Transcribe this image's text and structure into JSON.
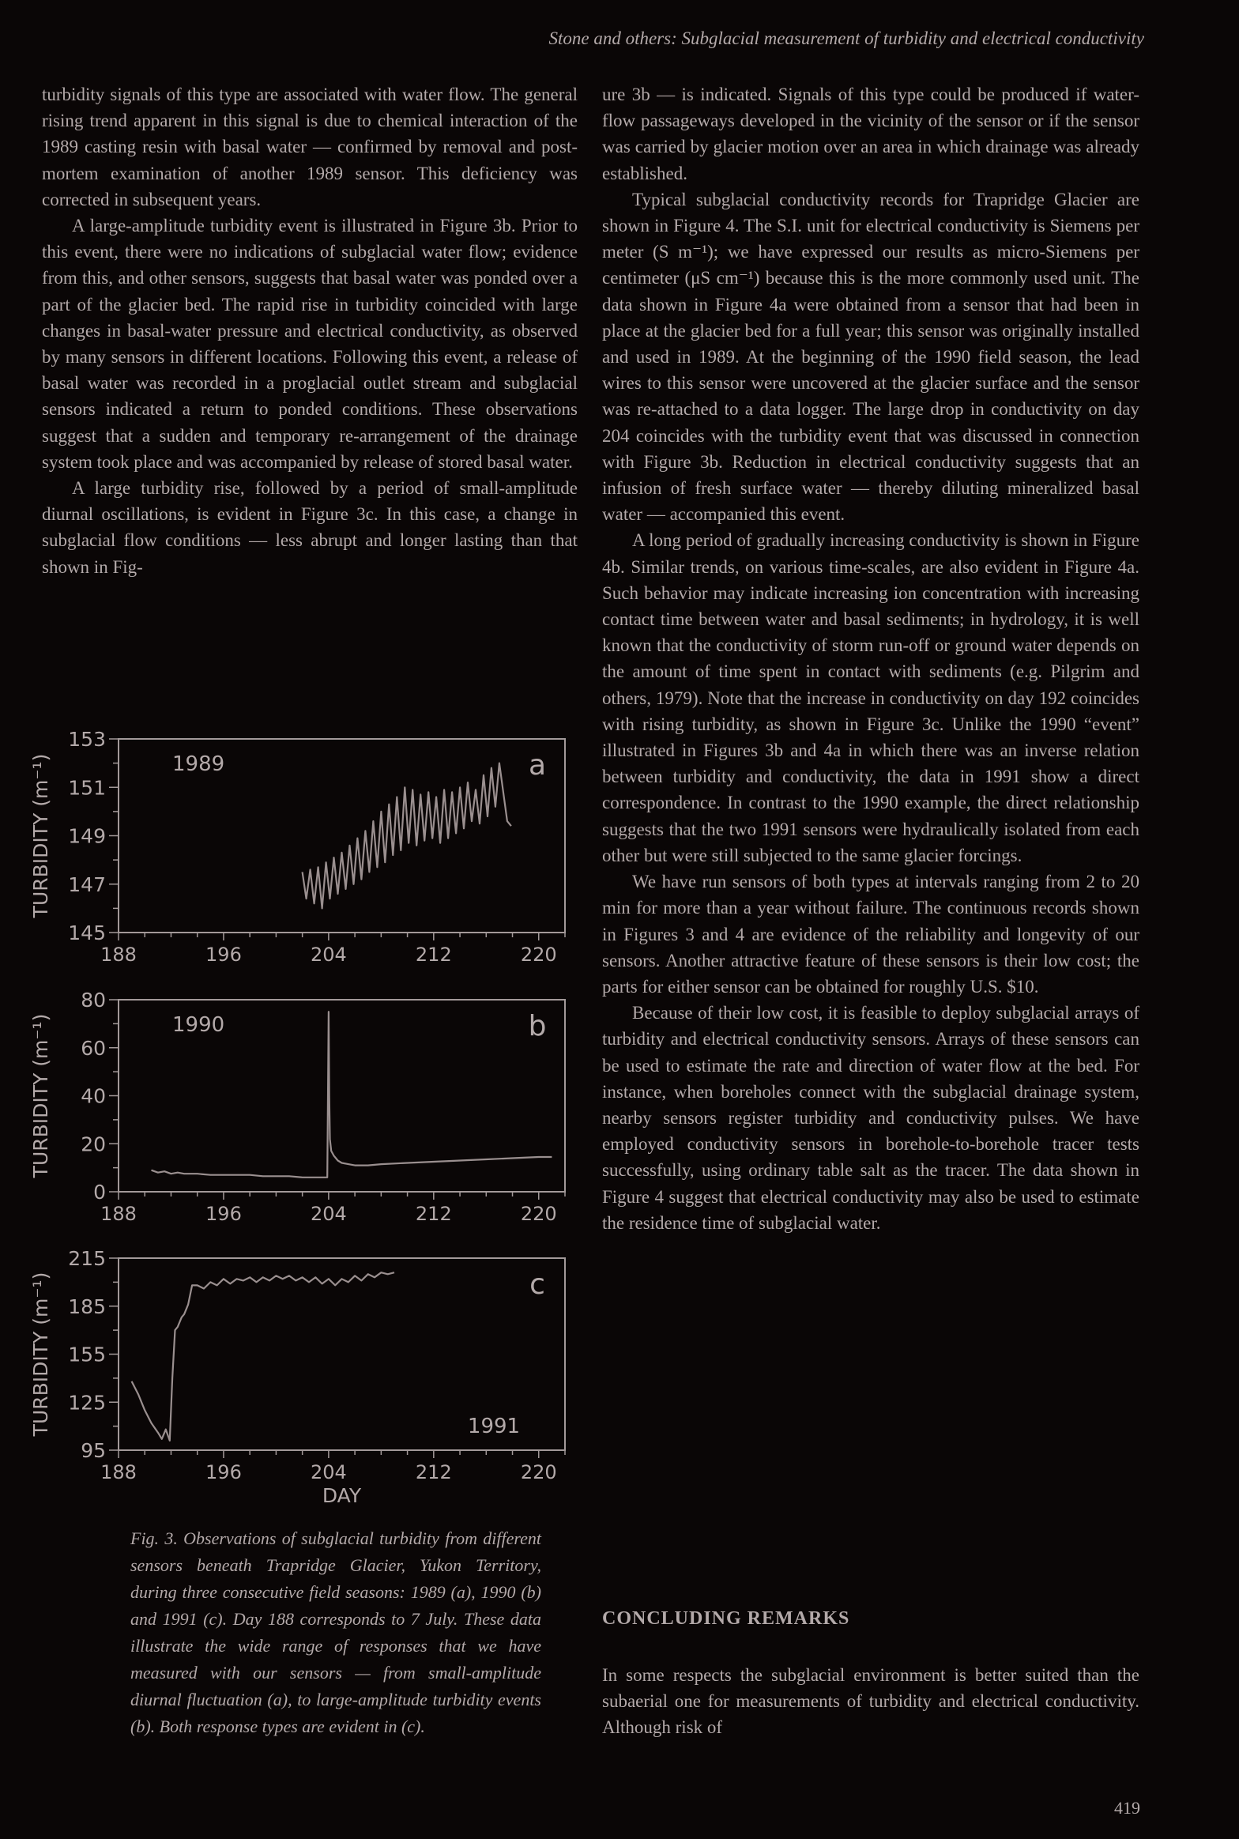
{
  "header": "Stone and others: Subglacial measurement of turbidity and electrical conductivity",
  "left_column": [
    "turbidity signals of this type are associated with water flow. The general rising trend apparent in this signal is due to chemical interaction of the 1989 casting resin with basal water — confirmed by removal and post-mortem examination of another 1989 sensor. This deficiency was corrected in subsequent years.",
    "A large-amplitude turbidity event is illustrated in Figure 3b. Prior to this event, there were no indications of subglacial water flow; evidence from this, and other sensors, suggests that basal water was ponded over a part of the glacier bed. The rapid rise in turbidity coincided with large changes in basal-water pressure and electrical conductivity, as observed by many sensors in different locations. Following this event, a release of basal water was recorded in a proglacial outlet stream and subglacial sensors indicated a return to ponded conditions. These observations suggest that a sudden and temporary re-arrangement of the drainage system took place and was accompanied by release of stored basal water.",
    "A large turbidity rise, followed by a period of small-amplitude diurnal oscillations, is evident in Figure 3c. In this case, a change in subglacial flow conditions — less abrupt and longer lasting than that shown in Fig-"
  ],
  "right_column": [
    "ure 3b — is indicated. Signals of this type could be produced if water-flow passageways developed in the vicinity of the sensor or if the sensor was carried by glacier motion over an area in which drainage was already established.",
    "Typical subglacial conductivity records for Trapridge Glacier are shown in Figure 4. The S.I. unit for electrical conductivity is Siemens per meter (S m⁻¹); we have expressed our results as micro-Siemens per centimeter (μS cm⁻¹) because this is the more commonly used unit. The data shown in Figure 4a were obtained from a sensor that had been in place at the glacier bed for a full year; this sensor was originally installed and used in 1989. At the beginning of the 1990 field season, the lead wires to this sensor were uncovered at the glacier surface and the sensor was re-attached to a data logger. The large drop in conductivity on day 204 coincides with the turbidity event that was discussed in connection with Figure 3b. Reduction in electrical conductivity suggests that an infusion of fresh surface water — thereby diluting mineralized basal water — accompanied this event.",
    "A long period of gradually increasing conductivity is shown in Figure 4b. Similar trends, on various time-scales, are also evident in Figure 4a. Such behavior may indicate increasing ion concentration with increasing contact time between water and basal sediments; in hydrology, it is well known that the conductivity of storm run-off or ground water depends on the amount of time spent in contact with sediments (e.g. Pilgrim and others, 1979). Note that the increase in conductivity on day 192 coincides with rising turbidity, as shown in Figure 3c. Unlike the 1990 “event” illustrated in Figures 3b and 4a in which there was an inverse relation between turbidity and conductivity, the data in 1991 show a direct correspondence. In contrast to the 1990 example, the direct relationship suggests that the two 1991 sensors were hydraulically isolated from each other but were still subjected to the same glacier forcings.",
    "We have run sensors of both types at intervals ranging from 2 to 20 min for more than a year without failure. The continuous records shown in Figures 3 and 4 are evidence of the reliability and longevity of our sensors. Another attractive feature of these sensors is their low cost; the parts for either sensor can be obtained for roughly U.S. $10.",
    "Because of their low cost, it is feasible to deploy subglacial arrays of turbidity and electrical conductivity sensors. Arrays of these sensors can be used to estimate the rate and direction of water flow at the bed. For instance, when boreholes connect with the subglacial drainage system, nearby sensors register turbidity and conductivity pulses. We have employed conductivity sensors in borehole-to-borehole tracer tests successfully, using ordinary table salt as the tracer. The data shown in Figure 4 suggest that electrical conductivity may also be used to estimate the residence time of subglacial water."
  ],
  "section_heading": "CONCLUDING REMARKS",
  "concluding_text": "In some respects the subglacial environment is better suited than the subaerial one for measurements of turbidity and electrical conductivity. Although risk of",
  "caption": "Fig. 3. Observations of subglacial turbidity from different sensors beneath Trapridge Glacier, Yukon Territory, during three consecutive field seasons: 1989 (a), 1990 (b) and 1991 (c). Day 188 corresponds to 7 July. These data illustrate the wide range of responses that we have measured with our sensors — from small-amplitude diurnal fluctuation (a), to large-amplitude turbidity events (b). Both response types are evident in (c).",
  "page_number": "419",
  "chart_data": [
    {
      "type": "line",
      "panel_label": "a",
      "year_label": "1989",
      "ylabel": "TURBIDITY (m⁻¹)",
      "xlabel": "",
      "xlim": [
        188,
        222
      ],
      "ylim": [
        145,
        153
      ],
      "xticks": [
        188,
        196,
        204,
        212,
        220
      ],
      "yticks": [
        145,
        147,
        149,
        151,
        153
      ],
      "series": [
        {
          "x": [
            202.0,
            202.3,
            202.6,
            202.9,
            203.2,
            203.5,
            203.8,
            204.1,
            204.4,
            204.7,
            205.0,
            205.3,
            205.6,
            205.9,
            206.2,
            206.5,
            206.8,
            207.1,
            207.4,
            207.7,
            208.0,
            208.3,
            208.6,
            208.9,
            209.2,
            209.5,
            209.8,
            210.1,
            210.4,
            210.7,
            211.0,
            211.3,
            211.6,
            211.9,
            212.2,
            212.5,
            212.8,
            213.1,
            213.4,
            213.7,
            214.0,
            214.3,
            214.6,
            214.9,
            215.2,
            215.5,
            215.8,
            216.1,
            216.4,
            216.7,
            217.0,
            217.3,
            217.6,
            217.9
          ],
          "y": [
            147.5,
            146.4,
            147.6,
            146.2,
            147.7,
            146.0,
            147.9,
            146.4,
            148.1,
            146.6,
            148.3,
            146.8,
            148.6,
            147.0,
            148.9,
            147.2,
            149.2,
            147.5,
            149.6,
            147.7,
            150.0,
            147.9,
            150.3,
            148.2,
            150.6,
            148.4,
            151.0,
            148.7,
            150.9,
            148.6,
            150.7,
            148.8,
            150.8,
            148.9,
            150.6,
            148.7,
            150.9,
            148.9,
            150.8,
            149.1,
            151.0,
            149.3,
            151.2,
            149.6,
            150.9,
            149.5,
            151.5,
            149.8,
            151.8,
            150.2,
            152.0,
            150.8,
            149.6,
            149.4
          ]
        }
      ]
    },
    {
      "type": "line",
      "panel_label": "b",
      "year_label": "1990",
      "ylabel": "TURBIDITY (m⁻¹)",
      "xlabel": "",
      "xlim": [
        188,
        222
      ],
      "ylim": [
        0,
        80
      ],
      "xticks": [
        188,
        196,
        204,
        212,
        220
      ],
      "yticks": [
        0,
        20,
        40,
        60,
        80
      ],
      "series": [
        {
          "x": [
            190.5,
            191.0,
            191.5,
            192.0,
            192.5,
            193.0,
            194.0,
            195.0,
            196.0,
            197.0,
            198.0,
            199.0,
            200.0,
            201.0,
            202.0,
            203.0,
            203.9,
            204.0,
            204.05,
            204.1,
            204.2,
            204.4,
            204.7,
            205.0,
            205.5,
            206.0,
            206.5,
            207.0,
            208.0,
            210.0,
            212.0,
            214.0,
            216.0,
            218.0,
            220.0,
            221.0
          ],
          "y": [
            9,
            8,
            8.5,
            7.5,
            8,
            7.5,
            7.5,
            7,
            7,
            7,
            7,
            6.5,
            6.5,
            6.5,
            6,
            6,
            6,
            75,
            40,
            22,
            17,
            15,
            13,
            12,
            11.5,
            11,
            11,
            11,
            11.5,
            12,
            12.5,
            13,
            13.5,
            14,
            14.5,
            14.5
          ]
        }
      ]
    },
    {
      "type": "line",
      "panel_label": "c",
      "year_label": "1991",
      "ylabel": "TURBIDITY (m⁻¹)",
      "xlabel": "DAY",
      "xlim": [
        188,
        222
      ],
      "ylim": [
        95,
        215
      ],
      "xticks": [
        188,
        196,
        204,
        212,
        220
      ],
      "yticks": [
        95,
        125,
        155,
        185,
        215
      ],
      "series": [
        {
          "x": [
            189.0,
            189.5,
            190.0,
            190.5,
            191.0,
            191.3,
            191.6,
            191.9,
            192.1,
            192.3,
            192.5,
            192.8,
            193.0,
            193.3,
            193.6,
            194.0,
            194.5,
            195.0,
            195.5,
            196.0,
            196.5,
            197.0,
            197.5,
            198.0,
            198.5,
            199.0,
            199.5,
            200.0,
            200.5,
            201.0,
            201.5,
            202.0,
            202.5,
            203.0,
            203.5,
            204.0,
            204.5,
            205.0,
            205.5,
            206.0,
            206.5,
            207.0,
            207.5,
            208.0,
            208.5,
            209.0
          ],
          "y": [
            138,
            130,
            120,
            112,
            106,
            102,
            108,
            101,
            140,
            170,
            172,
            178,
            180,
            186,
            198,
            198,
            196,
            200,
            198,
            202,
            199,
            202,
            201,
            203,
            200,
            203,
            201,
            204,
            202,
            204,
            201,
            203,
            200,
            203,
            199,
            202,
            198,
            202,
            200,
            204,
            201,
            205,
            203,
            206,
            205,
            206
          ]
        }
      ]
    }
  ]
}
